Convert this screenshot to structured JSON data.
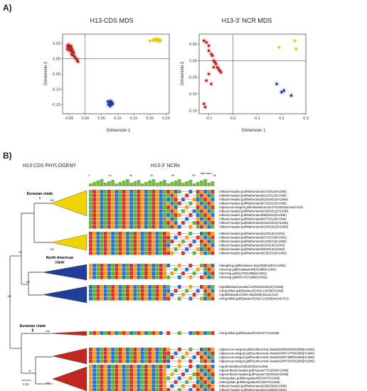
{
  "panel_a": {
    "letter": "A)",
    "left_chart": {
      "title": "H13-CDS MDS",
      "xlabel": "Dimension 1",
      "ylabel": "Dimension 2",
      "xticks": [
        "-0.05",
        "0.00",
        "0.05",
        "0.10",
        "0.15",
        "0.20",
        "0.25"
      ],
      "yticks": [
        "0.05",
        "0.00",
        "-0.05",
        "-0.10",
        "-0.15"
      ]
    },
    "right_chart": {
      "title": "H13-3' NCR MDS",
      "xlabel": "Dimension 1",
      "ylabel": "Dimension 2",
      "xticks": [
        "-0.1",
        "0.0",
        "0.1",
        "0.2",
        "0.3"
      ],
      "yticks": [
        "0.05",
        "0.00",
        "-0.05",
        "-0.10",
        "-0.15"
      ]
    }
  },
  "chart_data": [
    {
      "type": "scatter",
      "title": "H13-CDS MDS",
      "xlabel": "Dimension 1",
      "ylabel": "Dimension 2",
      "xlim": [
        -0.07,
        0.26
      ],
      "ylim": [
        -0.18,
        0.08
      ],
      "series": [
        {
          "color": "#b3261e",
          "x": [
            -0.055,
            -0.052,
            -0.05,
            -0.048,
            -0.045,
            -0.043,
            -0.055,
            -0.05,
            -0.047,
            -0.045,
            -0.04,
            -0.038,
            -0.036,
            -0.035,
            -0.032,
            -0.028,
            -0.025,
            -0.022,
            -0.042,
            -0.04
          ],
          "y": [
            0.04,
            0.045,
            0.038,
            0.042,
            0.036,
            0.04,
            0.03,
            0.032,
            0.028,
            0.025,
            0.03,
            0.022,
            0.02,
            0.01,
            0.005,
            0.0,
            -0.005,
            -0.01,
            0.015,
            0.012
          ]
        },
        {
          "color": "#e8c800",
          "x": [
            0.2,
            0.21,
            0.215,
            0.22,
            0.225,
            0.23,
            0.232,
            0.228,
            0.218
          ],
          "y": [
            0.058,
            0.06,
            0.062,
            0.06,
            0.063,
            0.061,
            0.059,
            0.057,
            0.064
          ]
        },
        {
          "color": "#1f3c9a",
          "x": [
            0.07,
            0.075,
            0.078,
            0.08,
            0.082,
            0.085,
            0.072,
            0.077
          ],
          "y": [
            -0.14,
            -0.145,
            -0.138,
            -0.15,
            -0.142,
            -0.148,
            -0.15,
            -0.155
          ]
        }
      ]
    },
    {
      "type": "scatter",
      "title": "H13-3' NCR MDS",
      "xlabel": "Dimension 1",
      "ylabel": "Dimension 2",
      "xlim": [
        -0.14,
        0.3
      ],
      "ylim": [
        -0.16,
        0.08
      ],
      "series": [
        {
          "color": "#b3261e",
          "x": [
            -0.12,
            -0.11,
            -0.1,
            -0.09,
            -0.085,
            -0.08,
            -0.075,
            -0.07,
            -0.065,
            -0.06,
            -0.055,
            -0.05,
            -0.1,
            -0.11,
            -0.09,
            -0.08,
            -0.12,
            -0.115,
            -0.1
          ],
          "y": [
            0.06,
            0.055,
            0.03,
            0.02,
            0.015,
            0.0,
            -0.005,
            -0.01,
            -0.02,
            -0.025,
            -0.03,
            -0.035,
            -0.04,
            -0.06,
            -0.07,
            -0.02,
            -0.13,
            -0.14,
            0.045
          ]
        },
        {
          "color": "#e8c800",
          "x": [
            0.19,
            0.255,
            0.26
          ],
          "y": [
            0.04,
            0.06,
            0.035
          ]
        },
        {
          "color": "#1f3c9a",
          "x": [
            0.18,
            0.2,
            0.21,
            0.24
          ],
          "y": [
            -0.07,
            -0.095,
            -0.09,
            -0.105
          ]
        }
      ]
    }
  ],
  "panel_b": {
    "letter": "B)",
    "phylogeny_title": "H13 CDS PHYLOGENY",
    "ncr_title": "H13-3' NCRs",
    "start_codon_label": "start codon",
    "alignment_ticks": [
      "1",
      "10",
      "20",
      "30",
      "40",
      "50",
      "60"
    ],
    "scale_bar_label": "0.02",
    "clades": [
      {
        "label": "Eurasian clade I",
        "color": "#f1d300"
      },
      {
        "label": "North American clade",
        "color": "#203d9a"
      },
      {
        "label": "Eurasian clade II",
        "color": "#c0281f"
      }
    ],
    "node_values": [
      "100",
      "100",
      "100",
      "78",
      "100",
      "100",
      "91",
      "100"
    ],
    "groups": [
      {
        "strains": [
          "A/black-headed gull/Netherlands/17/2012(H13N6)",
          "A/black-headed gull/Netherlands/21/2012(H13N6)",
          "A/black-headed gull/Netherlands/110/2012(H13N6)",
          "A/black-headed gull/Netherlands/72/2012(H13N6)",
          "A/glaucous-winged gull/Alaska/USA15-0722/2015(mixed,H13)",
          "A/black-headed gull/Netherlands/106/2012(H13N6)",
          "A/black-headed gull/Netherlands/88/2012(H13N6)",
          "A/black-headed gull/Netherlands/47/2012(H13N6)",
          "A/black-headed gull/Netherlands/102/2012(H13N6)",
          "A/black-headed gull/Netherlands/134/2012(H13N6)"
        ]
      },
      {
        "strains": [
          "A/black-headed gull/Netherlands/1/2014(H13N2)",
          "A/black-headed gull/Netherlands/27/2014(H13N2)",
          "A/black-headed gull/Netherlands/12/2014(H13N2)",
          "A/black-headed gull/Netherlands/2/2014(H13N2)",
          "A/black-headed gull/Netherlands/6/2014(H13N2)",
          "A/black-headed gull/Netherlands/13/2014(H13N2)"
        ]
      },
      {
        "strains": [
          "A/laughing gull/Delaware Bay/2838/1987(H13N2)",
          "A/herring gull/Delaware/660/1988(H13N6)",
          "A/herring gull/NJ/782/1986(H13N2)",
          "A/herring gull/DE/475/1986(H13N2)"
        ]
      },
      {
        "strains": [
          "A/gull/Massachusetts/13JR03320/2013(H13N6)",
          "A/ring-billed gull/Quebec/02434-1/2009(H13N6)",
          "A/gull/Delaware/AI09-435/2009(mixed,H13)",
          "A/ring-billed gull/Quebec/02622-1/2009(mixed,H13)"
        ]
      },
      {
        "strains": [
          "A/ring-billed gull/Maryland/704/1977(H13N6)"
        ]
      },
      {
        "strains": [
          "A/glaucous-winged gull/Southcentral Alaska/9JR0691R0/2009(H13N6)",
          "A/glaucous-winged gull/Southcentral Alaska/9JR0747R0/2009(H13N6)",
          "A/glaucous-winged gull/Southcentral Alaska/9JR0738R0/2009(H13N6)",
          "A/glaucous-winged gull/Southcentral Alaska/9JR0781R0/2009(H13N6)"
        ]
      },
      {
        "strains": [
          "A/gull/Astrakhan/3483/2002(H13N6)",
          "A/great black-headed gull/Atyrau/773/2004(H13N6)",
          "A/great black-headed gull/Atyrau/743/2004(H13N6)",
          "A/Mongolian gull/Mongolia/405/2007(H13N6)",
          "A/Mongolian gull/Mongolia/401/2007(H13N6)",
          "A/black-headed gull/Netherlands/39/2009(H13N8)",
          "A/black-headed gull/Netherlands/31/2009(H13N2)"
        ]
      }
    ]
  }
}
